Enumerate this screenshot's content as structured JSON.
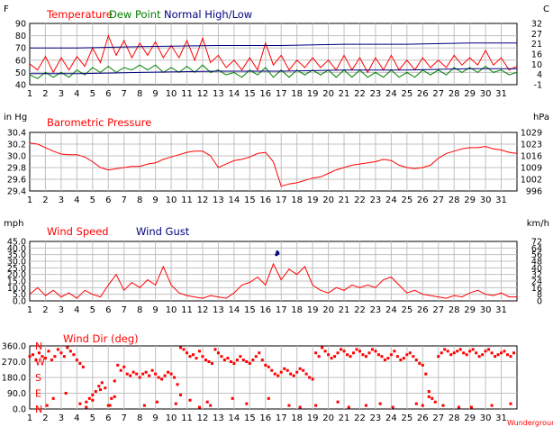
{
  "colors": {
    "temperature": "#ff0000",
    "dew_point": "#008000",
    "normal": "#000080",
    "pressure": "#ff0000",
    "wind_speed": "#ff0000",
    "wind_gust": "#000080",
    "wind_dir": "#ff0000",
    "axis_text": "#000000",
    "grid": "#c0c0c0"
  },
  "x_axis": {
    "tick_labels": [
      "1",
      "2",
      "3",
      "4",
      "5",
      "6",
      "7",
      "8",
      "9",
      "10",
      "11",
      "12",
      "13",
      "14",
      "15",
      "16",
      "17",
      "18",
      "19",
      "20",
      "21",
      "22",
      "23",
      "24",
      "25",
      "26",
      "27",
      "28",
      "29",
      "30",
      "31"
    ]
  },
  "footer": {
    "source": "Wunderground"
  },
  "chart_data": [
    {
      "type": "line",
      "title": "",
      "legend": [
        "Temperature",
        "Dew Point",
        "Normal High/Low"
      ],
      "left_unit": "F",
      "right_unit": "C",
      "left_ticks": [
        "90",
        "80",
        "70",
        "60",
        "50",
        "40"
      ],
      "right_ticks": [
        "32",
        "27",
        "21",
        "16",
        "10",
        "4",
        "-1"
      ],
      "ylim": [
        40,
        90
      ],
      "grid": true,
      "x_range": [
        1,
        32
      ],
      "series": [
        {
          "name": "Temperature",
          "x": [
            1,
            1.5,
            2,
            2.5,
            3,
            3.5,
            4,
            4.5,
            5,
            5.5,
            6,
            6.5,
            7,
            7.5,
            8,
            8.5,
            9,
            9.5,
            10,
            10.5,
            11,
            11.5,
            12,
            12.5,
            13,
            13.5,
            14,
            14.5,
            15,
            15.5,
            16,
            16.5,
            17,
            17.5,
            18,
            18.5,
            19,
            19.5,
            20,
            20.5,
            21,
            21.5,
            22,
            22.5,
            23,
            23.5,
            24,
            24.5,
            25,
            25.5,
            26,
            26.5,
            27,
            27.5,
            28,
            28.5,
            29,
            29.5,
            30,
            30.5,
            31,
            31.5,
            32
          ],
          "values": [
            57,
            52,
            63,
            50,
            62,
            52,
            63,
            55,
            70,
            58,
            80,
            64,
            76,
            62,
            74,
            64,
            75,
            62,
            72,
            62,
            76,
            60,
            78,
            58,
            64,
            54,
            60,
            52,
            62,
            52,
            74,
            56,
            64,
            52,
            60,
            54,
            62,
            54,
            60,
            52,
            64,
            52,
            62,
            50,
            62,
            52,
            64,
            52,
            60,
            52,
            62,
            54,
            60,
            54,
            64,
            56,
            62,
            56,
            68,
            56,
            62,
            52,
            55
          ]
        },
        {
          "name": "Dew Point",
          "x": [
            1,
            1.5,
            2,
            2.5,
            3,
            3.5,
            4,
            4.5,
            5,
            5.5,
            6,
            6.5,
            7,
            7.5,
            8,
            8.5,
            9,
            9.5,
            10,
            10.5,
            11,
            11.5,
            12,
            12.5,
            13,
            13.5,
            14,
            14.5,
            15,
            15.5,
            16,
            16.5,
            17,
            17.5,
            18,
            18.5,
            19,
            19.5,
            20,
            20.5,
            21,
            21.5,
            22,
            22.5,
            23,
            23.5,
            24,
            24.5,
            25,
            25.5,
            26,
            26.5,
            27,
            27.5,
            28,
            28.5,
            29,
            29.5,
            30,
            30.5,
            31,
            31.5,
            32
          ],
          "values": [
            48,
            45,
            50,
            46,
            50,
            46,
            52,
            48,
            54,
            50,
            55,
            50,
            54,
            52,
            56,
            52,
            56,
            50,
            54,
            50,
            55,
            50,
            56,
            50,
            52,
            48,
            50,
            46,
            52,
            48,
            54,
            46,
            52,
            46,
            52,
            48,
            52,
            48,
            52,
            46,
            52,
            46,
            52,
            46,
            50,
            46,
            52,
            46,
            50,
            46,
            52,
            48,
            52,
            48,
            54,
            50,
            54,
            50,
            55,
            50,
            52,
            48,
            50
          ]
        },
        {
          "name": "Normal High",
          "x": [
            1,
            4,
            8,
            13,
            17,
            21,
            25,
            29,
            32
          ],
          "values": [
            70,
            70,
            71,
            72,
            72,
            73,
            73,
            74,
            74
          ]
        },
        {
          "name": "Normal Low",
          "x": [
            1,
            4,
            8,
            13,
            17,
            21,
            25,
            29,
            32
          ],
          "values": [
            49,
            49,
            50,
            51,
            51,
            52,
            52,
            53,
            53
          ]
        }
      ]
    },
    {
      "type": "line",
      "title": "",
      "legend": [
        "Barometric Pressure"
      ],
      "left_unit": "in Hg",
      "right_unit": "hPa",
      "left_ticks": [
        "30.4",
        "30.2",
        "30.0",
        "29.8",
        "29.6",
        "29.4"
      ],
      "right_ticks": [
        "1029",
        "1023",
        "1016",
        "1009",
        "1002",
        "996"
      ],
      "ylim": [
        29.4,
        30.4
      ],
      "grid": true,
      "x_range": [
        1,
        32
      ],
      "series": [
        {
          "name": "Barometric Pressure",
          "x": [
            1,
            1.5,
            2,
            2.5,
            3,
            3.5,
            4,
            4.5,
            5,
            5.5,
            6,
            6.5,
            7,
            7.5,
            8,
            8.5,
            9,
            9.5,
            10,
            10.5,
            11,
            11.5,
            12,
            12.5,
            13,
            13.5,
            14,
            14.5,
            15,
            15.5,
            16,
            16.5,
            17,
            17.5,
            18,
            18.5,
            19,
            19.5,
            20,
            20.5,
            21,
            21.5,
            22,
            22.5,
            23,
            23.5,
            24,
            24.5,
            25,
            25.5,
            26,
            26.5,
            27,
            27.5,
            28,
            28.5,
            29,
            29.5,
            30,
            30.5,
            31,
            31.5,
            32
          ],
          "values": [
            30.22,
            30.2,
            30.14,
            30.08,
            30.03,
            30.02,
            30.02,
            29.98,
            29.9,
            29.8,
            29.76,
            29.78,
            29.8,
            29.82,
            29.82,
            29.86,
            29.88,
            29.94,
            29.98,
            30.02,
            30.06,
            30.08,
            30.08,
            30.0,
            29.8,
            29.86,
            29.92,
            29.94,
            29.98,
            30.04,
            30.06,
            29.9,
            29.48,
            29.52,
            29.54,
            29.58,
            29.62,
            29.64,
            29.7,
            29.76,
            29.8,
            29.84,
            29.86,
            29.88,
            29.9,
            29.94,
            29.92,
            29.84,
            29.8,
            29.78,
            29.8,
            29.84,
            29.96,
            30.04,
            30.08,
            30.12,
            30.14,
            30.14,
            30.16,
            30.12,
            30.1,
            30.06,
            30.04
          ]
        }
      ]
    },
    {
      "type": "line",
      "title": "",
      "legend": [
        "Wind Speed",
        "Wind Gust"
      ],
      "left_unit": "mph",
      "right_unit": "km/h",
      "left_ticks": [
        "45.0",
        "40.0",
        "35.0",
        "30.0",
        "25.0",
        "20.0",
        "15.0",
        "10.0",
        "5.0",
        "0.0"
      ],
      "right_ticks": [
        "72",
        "64",
        "56",
        "48",
        "40",
        "32",
        "24",
        "16",
        "8",
        "0"
      ],
      "ylim": [
        0,
        45
      ],
      "grid": true,
      "x_range": [
        1,
        32
      ],
      "series": [
        {
          "name": "Wind Speed",
          "x": [
            1,
            1.5,
            2,
            2.5,
            3,
            3.5,
            4,
            4.5,
            5,
            5.5,
            6,
            6.5,
            7,
            7.5,
            8,
            8.5,
            9,
            9.5,
            10,
            10.5,
            11,
            11.5,
            12,
            12.5,
            13,
            13.5,
            14,
            14.5,
            15,
            15.5,
            16,
            16.5,
            17,
            17.5,
            18,
            18.5,
            19,
            19.5,
            20,
            20.5,
            21,
            21.5,
            22,
            22.5,
            23,
            23.5,
            24,
            24.5,
            25,
            25.5,
            26,
            26.5,
            27,
            27.5,
            28,
            28.5,
            29,
            29.5,
            30,
            30.5,
            31,
            31.5,
            32
          ],
          "values": [
            5,
            10,
            4,
            8,
            3,
            6,
            2,
            8,
            5,
            3,
            12,
            20,
            8,
            14,
            10,
            16,
            12,
            26,
            12,
            6,
            4,
            3,
            2,
            4,
            3,
            2,
            6,
            12,
            14,
            18,
            12,
            28,
            16,
            24,
            20,
            26,
            12,
            8,
            6,
            10,
            8,
            12,
            10,
            12,
            10,
            16,
            18,
            12,
            6,
            8,
            5,
            4,
            3,
            2,
            4,
            3,
            6,
            8,
            5,
            4,
            6,
            3,
            3
          ]
        },
        {
          "name": "Wind Gust",
          "x": [
            16.7,
            16.75,
            16.8
          ],
          "values": [
            35,
            37,
            36
          ]
        }
      ]
    },
    {
      "type": "scatter",
      "title": "",
      "legend": [
        "Wind Dir (deg)"
      ],
      "left_unit": "",
      "right_unit": "",
      "left_ticks": [
        "360.0",
        "270.0",
        "180.0",
        "90.0",
        "0.0"
      ],
      "compass_labels": [
        "N",
        "W",
        "S",
        "E",
        "N"
      ],
      "ylim": [
        0,
        360
      ],
      "grid": true,
      "x_range": [
        1,
        32
      ],
      "series": [
        {
          "name": "Wind Dir (deg)",
          "x": [
            1.0,
            1.2,
            1.4,
            1.6,
            1.8,
            2.0,
            2.2,
            2.4,
            2.6,
            2.8,
            3.0,
            3.2,
            3.4,
            3.6,
            3.8,
            4.0,
            4.2,
            4.4,
            4.6,
            4.8,
            5.0,
            5.2,
            5.4,
            5.6,
            5.8,
            6.0,
            6.2,
            6.4,
            6.6,
            6.8,
            7.0,
            7.2,
            7.4,
            7.6,
            7.8,
            8.0,
            8.2,
            8.4,
            8.6,
            8.8,
            9.0,
            9.2,
            9.4,
            9.6,
            9.8,
            10.0,
            10.2,
            10.4,
            10.6,
            10.8,
            11.0,
            11.2,
            11.4,
            11.6,
            11.8,
            12.0,
            12.2,
            12.4,
            12.6,
            12.8,
            13.0,
            13.2,
            13.4,
            13.6,
            13.8,
            14.0,
            14.2,
            14.4,
            14.6,
            14.8,
            15.0,
            15.2,
            15.4,
            15.6,
            15.8,
            16.0,
            16.2,
            16.4,
            16.6,
            16.8,
            17.0,
            17.2,
            17.4,
            17.6,
            17.8,
            18.0,
            18.2,
            18.4,
            18.6,
            18.8,
            19.0,
            19.2,
            19.4,
            19.6,
            19.8,
            20.0,
            20.2,
            20.4,
            20.6,
            20.8,
            21.0,
            21.2,
            21.4,
            21.6,
            21.8,
            22.0,
            22.2,
            22.4,
            22.6,
            22.8,
            23.0,
            23.2,
            23.4,
            23.6,
            23.8,
            24.0,
            24.2,
            24.4,
            24.6,
            24.8,
            25.0,
            25.2,
            25.4,
            25.6,
            25.8,
            26.0,
            26.2,
            26.4,
            26.6,
            26.8,
            27.0,
            27.2,
            27.4,
            27.6,
            27.8,
            28.0,
            28.2,
            28.4,
            28.6,
            28.8,
            29.0,
            29.2,
            29.4,
            29.6,
            29.8,
            30.0,
            30.2,
            30.4,
            30.6,
            30.8,
            31.0,
            31.2,
            31.4,
            31.6,
            31.8,
            2.1,
            2.5,
            3.3,
            4.2,
            4.6,
            5.0,
            5.5,
            6.1,
            6.4,
            8.3,
            9.1,
            10.3,
            10.6,
            11.2,
            11.8,
            12.3,
            12.5,
            13.9,
            14.8,
            16.2,
            17.5,
            18.2,
            19.2,
            20.6,
            21.3,
            22.4,
            23.3,
            24.1,
            25.6,
            26.0,
            26.4,
            27.3,
            28.3,
            29.1,
            30.4,
            31.6
          ],
          "values": [
            300,
            310,
            280,
            320,
            300,
            290,
            330,
            280,
            300,
            340,
            320,
            300,
            350,
            330,
            310,
            280,
            260,
            240,
            40,
            60,
            80,
            100,
            130,
            150,
            120,
            20,
            60,
            160,
            250,
            220,
            240,
            200,
            190,
            210,
            200,
            180,
            200,
            210,
            190,
            220,
            200,
            180,
            170,
            190,
            210,
            200,
            180,
            140,
            350,
            340,
            320,
            300,
            310,
            290,
            330,
            300,
            280,
            270,
            260,
            340,
            320,
            300,
            280,
            290,
            270,
            260,
            280,
            300,
            280,
            270,
            260,
            280,
            300,
            320,
            280,
            250,
            240,
            220,
            200,
            190,
            210,
            230,
            220,
            200,
            190,
            210,
            230,
            220,
            200,
            180,
            170,
            320,
            300,
            350,
            330,
            310,
            290,
            300,
            320,
            340,
            330,
            310,
            300,
            320,
            340,
            330,
            310,
            300,
            320,
            340,
            330,
            310,
            300,
            280,
            290,
            310,
            330,
            300,
            280,
            290,
            310,
            320,
            300,
            280,
            260,
            250,
            200,
            100,
            60,
            40,
            300,
            320,
            340,
            330,
            310,
            320,
            330,
            340,
            320,
            310,
            330,
            340,
            320,
            300,
            310,
            330,
            340,
            320,
            300,
            310,
            320,
            330,
            310,
            300,
            320,
            20,
            60,
            90,
            30,
            10,
            50,
            110,
            20,
            70,
            20,
            40,
            30,
            80,
            50,
            10,
            40,
            20,
            60,
            30,
            60,
            20,
            10,
            20,
            40,
            10,
            20,
            30,
            10,
            30,
            20,
            70,
            20,
            10,
            10,
            20,
            30
          ]
        }
      ]
    }
  ]
}
